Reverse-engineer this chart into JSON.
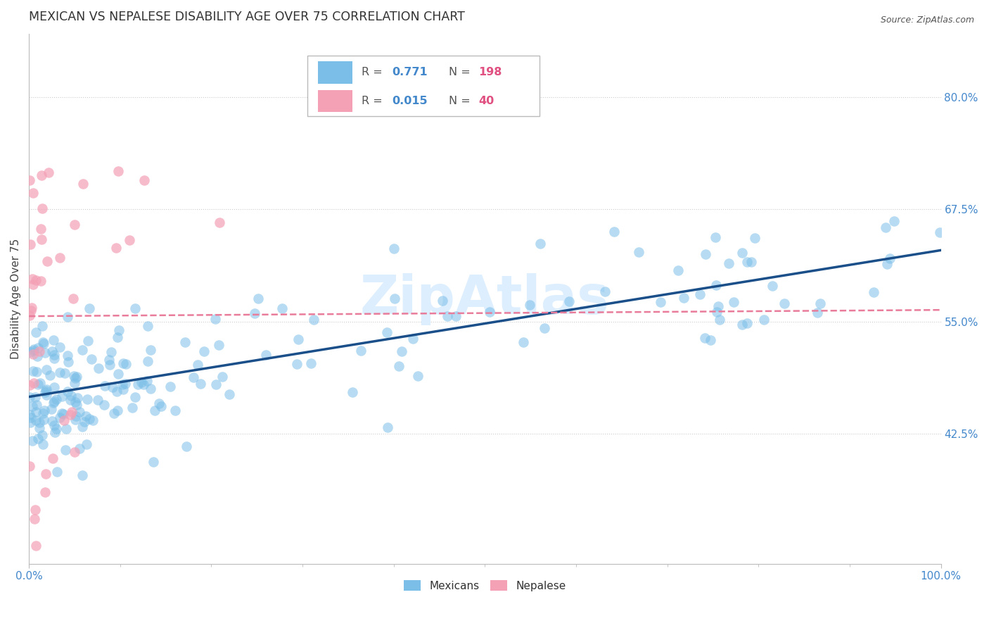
{
  "title": "MEXICAN VS NEPALESE DISABILITY AGE OVER 75 CORRELATION CHART",
  "source": "Source: ZipAtlas.com",
  "ylabel": "Disability Age Over 75",
  "ytick_labels": [
    "80.0%",
    "67.5%",
    "55.0%",
    "42.5%"
  ],
  "ytick_values": [
    0.8,
    0.675,
    0.55,
    0.425
  ],
  "xlim": [
    0.0,
    1.0
  ],
  "ylim": [
    0.28,
    0.87
  ],
  "mexican_color": "#7bbee8",
  "nepalese_color": "#f4a0b5",
  "regression_mexican_color": "#1a4f8a",
  "regression_nepalese_color": "#e87c9a",
  "title_color": "#333333",
  "source_color": "#555555",
  "axis_label_color": "#4488cc",
  "legend_r_color": "#4488cc",
  "legend_n_color": "#e05080",
  "watermark_color": "#ddeeff",
  "background_color": "#ffffff",
  "grid_color": "#cccccc",
  "seed": 12345
}
